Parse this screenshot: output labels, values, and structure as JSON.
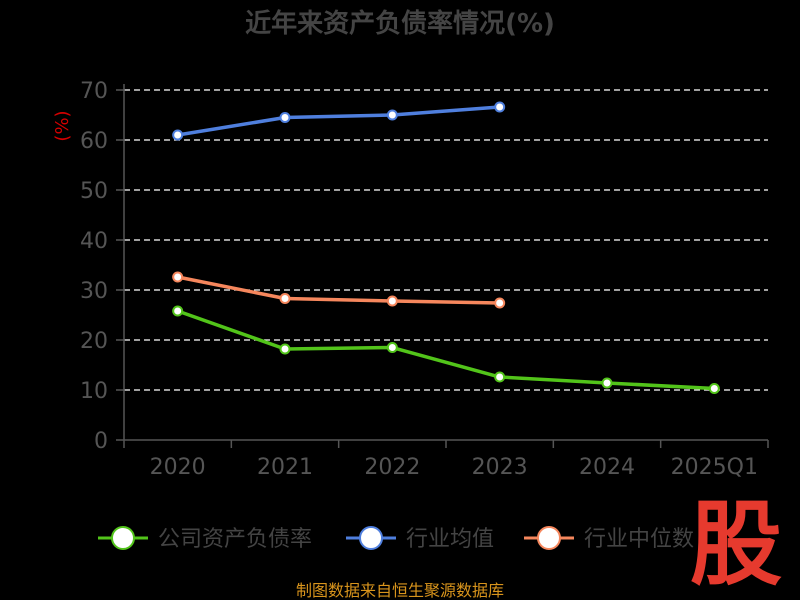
{
  "chart_data": {
    "type": "line",
    "title": "近年来资产负债率情况(%)",
    "ylabel": "(%)",
    "categories": [
      "2020",
      "2021",
      "2022",
      "2023",
      "2024",
      "2025Q1"
    ],
    "ylim": [
      0,
      70
    ],
    "yticks": [
      0,
      10,
      20,
      30,
      40,
      50,
      60,
      70
    ],
    "grid": true,
    "legend_position": "bottom",
    "series": [
      {
        "name": "公司资产负债率",
        "color": "#52c41a",
        "values": [
          25.8,
          18.2,
          18.5,
          12.6,
          11.4,
          10.3
        ]
      },
      {
        "name": "行业均值",
        "color": "#4f7fde",
        "values": [
          61.0,
          64.5,
          65.0,
          66.6,
          null,
          null
        ]
      },
      {
        "name": "行业中位数",
        "color": "#f6875d",
        "values": [
          32.6,
          28.3,
          27.8,
          27.4,
          null,
          null
        ]
      }
    ]
  },
  "source": "制图数据来自恒生聚源数据库",
  "stamp": "股"
}
